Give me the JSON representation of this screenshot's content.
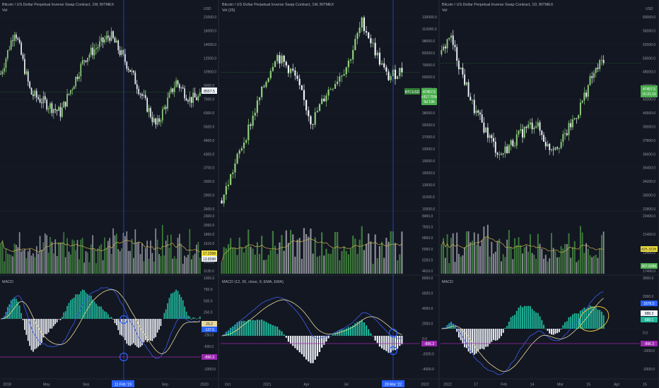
{
  "colors": {
    "background": "#131722",
    "grid": "#1c2030",
    "text": "#b2b5be",
    "axis_text": "#9598a1",
    "up_candle": "#8fd07a",
    "down_candle": "#f0f3fa",
    "volume_up": "#3e7a3c",
    "volume_down": "#8a8d96",
    "volume_ma": "#c9b24b",
    "macd_line": "#3d5cf0",
    "signal_line": "#e8d9a0",
    "hist_up": "#1fb69a",
    "hist_down": "#f0f3fa",
    "price_line": "#2e7d32",
    "h_line": "#9c27b0",
    "cross_line": "#2962ff",
    "circle": "#2962ff",
    "ellipse": "#e3c23d",
    "sep": "#2a2e39"
  },
  "charts": [
    {
      "title": "Bitcoin / US Dollar Perpetual Inverse Swap Contract, 1W, BITMEX",
      "vol_label": "Vol",
      "macd_label": "MACD",
      "price_unit": "USD",
      "price_axis": [
        "21000.0",
        "16000.0",
        "14000.0",
        "12500.0",
        "10900.0",
        "9000.0",
        "7500.0",
        "6300.0",
        "5500.0",
        "4900.0",
        "4300.0",
        "3700.0",
        "3300.0",
        "2900.0",
        "2600.0"
      ],
      "volume_axis": [
        "2300.0",
        "2050.0",
        "1860.0",
        "1610.0",
        "1420.0",
        "1300.0",
        "1135.0"
      ],
      "macd_axis": [
        "1000.0",
        "750.0",
        "500.0",
        "250.0",
        "0.0",
        "-250.0",
        "-500.0",
        "-750.0",
        "-1000.0"
      ],
      "last_price": "8557.5",
      "volume_values": [
        "17.2368",
        "13.8398"
      ],
      "macd_values": [
        "23.2",
        "-137.5",
        "-896.3"
      ],
      "date_labels": [
        "2018",
        "May",
        "Sep",
        "May",
        "Sep",
        "2020"
      ],
      "cursor_label": "11 Feb '19"
    },
    {
      "title": "Bitcoin / US Dollar Perpetual Inverse Swap Contract, 1W, BITMEX",
      "vol_label": "Vol (25)",
      "macd_label": "MACD (12, 26, close, 9, EMA, EMA)",
      "price_unit": "",
      "price_axis": [
        "130000.0",
        "110000.0",
        "98000.0",
        "82000.0",
        "70000.0",
        "60000.0",
        "52000.0",
        "44000.0",
        "38000.0",
        "32000.0",
        "27000.0",
        "23000.0",
        "19000.0",
        "16000.0",
        "13000.0",
        "11500.0",
        "10000.0"
      ],
      "volume_axis": [
        "8450.0",
        "7650.0",
        "6850.0",
        "5950.0",
        "5250.0",
        "4610.0"
      ],
      "macd_axis": [
        "8000.0",
        "6000.0",
        "4000.0",
        "2000.0",
        "0.0",
        "-2000.0",
        "-4000.0"
      ],
      "last_price": "47457.5",
      "price_change": "+317.75%",
      "countdown": "5d 19h",
      "left_tag": "BTCUSD",
      "macd_values": [
        "-896.3"
      ],
      "date_labels": [
        "Oct",
        "2021",
        "Apr",
        "Jul",
        "Oct",
        "2022"
      ],
      "cursor_label": "28 Mar '22"
    },
    {
      "title": "Bitcoin / US Dollar Perpetual Inverse Swap Contract, 1D, BITMEX",
      "vol_label": "Vol",
      "macd_label": "MACD",
      "price_unit": "USD",
      "price_axis": [
        "60000.0",
        "56000.0",
        "52000.0",
        "50000.0",
        "48000.0",
        "44000.0",
        "42000.0",
        "40500.0",
        "39000.0",
        "37800.0",
        "36600.0",
        "35400.0",
        "34200.0",
        "33000.0",
        "31800.0"
      ],
      "volume_axis": [
        "23400.0",
        "21400.0",
        "19400.0",
        "17400.0"
      ],
      "macd_axis": [
        "3000.0",
        "2000.0",
        "1000.0",
        "0.0",
        "-1000.0",
        "-2000.0"
      ],
      "last_price": "47457.5",
      "countdown": "15:21:16",
      "volume_values": [
        "825.322K",
        "307.508K"
      ],
      "macd_values": [
        "1676.5",
        "988.3",
        "688.1",
        "-896.3"
      ],
      "date_labels": [
        "2022",
        "17",
        "Feb",
        "14",
        "Mar",
        "15",
        "Apr",
        "15"
      ]
    }
  ]
}
